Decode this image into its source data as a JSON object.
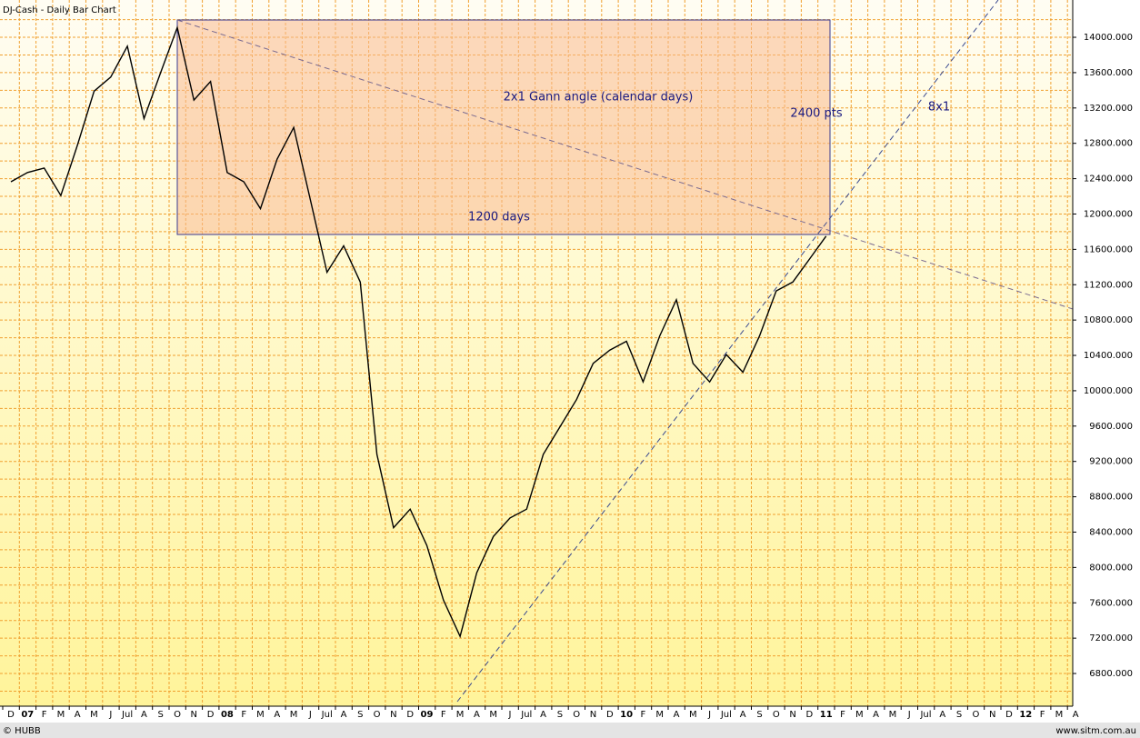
{
  "chart_data": {
    "type": "line",
    "title": "DJ-Cash - Daily Bar Chart",
    "footer_left": "© HUBB",
    "footer_right": "www.sitm.com.au",
    "categories": [
      "D",
      "07",
      "F",
      "M",
      "A",
      "M",
      "J",
      "Jul",
      "A",
      "S",
      "O",
      "N",
      "D",
      "08",
      "F",
      "M",
      "A",
      "M",
      "J",
      "Jul",
      "A",
      "S",
      "O",
      "N",
      "D",
      "09",
      "F",
      "M",
      "A",
      "M",
      "J",
      "Jul",
      "A",
      "S",
      "O",
      "N",
      "D",
      "10",
      "F",
      "M",
      "A",
      "M",
      "J",
      "Jul",
      "A",
      "S",
      "O",
      "N",
      "D",
      "11",
      "F",
      "M",
      "A",
      "M",
      "J",
      "Jul",
      "A",
      "S",
      "O",
      "N",
      "D",
      "12",
      "F",
      "M",
      "A"
    ],
    "series": [
      {
        "name": "DJ-Cash",
        "color": "#000000",
        "values": [
          12365,
          12470,
          12520,
          12210,
          12780,
          13390,
          13550,
          13900,
          13080,
          13600,
          14110,
          13290,
          13500,
          12470,
          12365,
          12060,
          12620,
          12980,
          12160,
          11340,
          11640,
          11230,
          9280,
          8450,
          8660,
          8250,
          7630,
          7220,
          7940,
          8350,
          8560,
          8660,
          9280,
          9590,
          9900,
          10310,
          10460,
          10560,
          10100,
          10620,
          11030,
          10310,
          10100,
          10410,
          10210,
          10620,
          11130,
          11230,
          11490,
          11750,
          null,
          null,
          null,
          null,
          null,
          null,
          null,
          null,
          null,
          null,
          null,
          null,
          null,
          null,
          null
        ]
      }
    ],
    "ylim": [
      6430,
      14422
    ],
    "yticks": [
      {
        "value": 6800,
        "label": "6800.000"
      },
      {
        "value": 7200,
        "label": "7200.000"
      },
      {
        "value": 7600,
        "label": "7600.000"
      },
      {
        "value": 8000,
        "label": "8000.000"
      },
      {
        "value": 8400,
        "label": "8400.000"
      },
      {
        "value": 8800,
        "label": "8800.000"
      },
      {
        "value": 9200,
        "label": "9200.000"
      },
      {
        "value": 9600,
        "label": "9600.000"
      },
      {
        "value": 10000,
        "label": "10000.000"
      },
      {
        "value": 10400,
        "label": "10400.000"
      },
      {
        "value": 10800,
        "label": "10800.000"
      },
      {
        "value": 11200,
        "label": "11200.000"
      },
      {
        "value": 11600,
        "label": "11600.000"
      },
      {
        "value": 12000,
        "label": "12000.000"
      },
      {
        "value": 12400,
        "label": "12400.000"
      },
      {
        "value": 12800,
        "label": "12800.000"
      },
      {
        "value": 13200,
        "label": "13200.000"
      },
      {
        "value": 13600,
        "label": "13600.000"
      },
      {
        "value": 14000,
        "label": "14000.000"
      }
    ],
    "y_minor_ticks": [
      6600,
      7000,
      7400,
      7800,
      8200,
      8600,
      9000,
      9400,
      9800,
      10200,
      10600,
      11000,
      11400,
      11800,
      12200,
      12600,
      13000,
      13400,
      13800,
      14200
    ],
    "grid": true,
    "annotations": [
      "2x1 Gann angle (calendar days)",
      "2400 pts",
      "1200 days",
      "8x1"
    ]
  }
}
